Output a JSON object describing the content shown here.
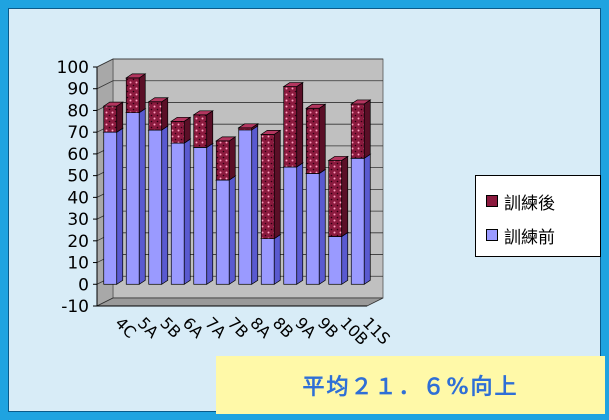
{
  "chart_data": {
    "type": "bar",
    "stacked": true,
    "three_d": true,
    "categories": [
      "4C",
      "5A",
      "5B",
      "6A",
      "7A",
      "7B",
      "8A",
      "8B",
      "9A",
      "9B",
      "10B",
      "11S"
    ],
    "series": [
      {
        "name": "訓練前",
        "values": [
          70,
          79,
          71,
          65,
          63,
          48,
          72,
          21,
          54,
          51,
          22,
          58
        ],
        "color": "#9a9aff"
      },
      {
        "name": "訓練後",
        "values": [
          12,
          16,
          13,
          10,
          15,
          18,
          -1,
          48,
          37,
          30,
          35,
          25
        ],
        "color": "#8b1a3e"
      }
    ],
    "y_ticks": [
      "100",
      "90",
      "80",
      "70",
      "60",
      "50",
      "40",
      "30",
      "20",
      "10",
      "0",
      "-10"
    ],
    "ylim": [
      -10,
      100
    ],
    "grid": true,
    "legend_position": "right",
    "legend": [
      "訓練後",
      "訓練前"
    ]
  },
  "banner": {
    "text": "平均２１．６%向上"
  }
}
